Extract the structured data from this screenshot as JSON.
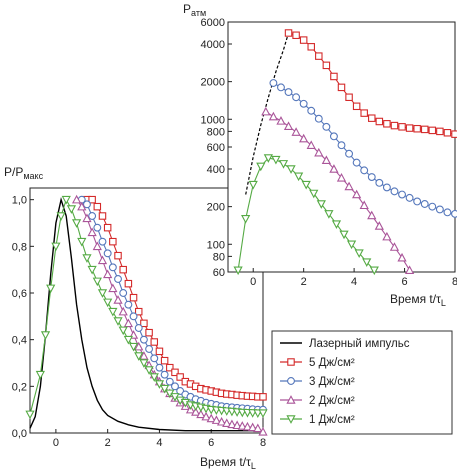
{
  "chart_data": [
    {
      "type": "line",
      "panel": "main",
      "ylabel": "P/P",
      "ylabel_sub": "макс",
      "xlabel": "Время t/τ",
      "xlabel_sub": "L",
      "xlim": [
        -1,
        8
      ],
      "ylim": [
        0,
        1.05
      ],
      "xticks": [
        0,
        2,
        4,
        6,
        8
      ],
      "yticks": [
        0,
        0.2,
        0.4,
        0.6,
        0.8,
        1.0
      ],
      "ytick_labels": [
        "0,0",
        "0,2",
        "0,4",
        "0,6",
        "0,8",
        "1,0"
      ],
      "grid": false,
      "legend": {
        "position": "lower-right",
        "entries": [
          "Лазерный импульс",
          "5 Дж/см²",
          "3 Дж/см²",
          "2 Дж/см²",
          "1 Дж/см²"
        ]
      },
      "series": [
        {
          "name": "Лазерный импульс",
          "color": "#000000",
          "marker": "none",
          "x": [
            -1,
            -0.8,
            -0.6,
            -0.4,
            -0.2,
            0,
            0.2,
            0.4,
            0.6,
            0.8,
            1.0,
            1.2,
            1.4,
            1.6,
            1.8,
            2.0,
            2.4,
            2.8,
            3.2,
            4,
            5,
            6,
            7,
            8
          ],
          "y": [
            0.02,
            0.07,
            0.2,
            0.42,
            0.68,
            0.9,
            1.0,
            0.93,
            0.75,
            0.55,
            0.4,
            0.28,
            0.2,
            0.14,
            0.1,
            0.075,
            0.05,
            0.035,
            0.025,
            0.015,
            0.01,
            0.01,
            0.01,
            0.01
          ]
        },
        {
          "name": "5 Дж/см²",
          "color": "#d42a2a",
          "marker": "square",
          "x": [
            1.2,
            1.4,
            1.6,
            1.8,
            2.0,
            2.2,
            2.4,
            2.6,
            2.8,
            3.0,
            3.2,
            3.4,
            3.6,
            3.8,
            4.0,
            4.2,
            4.4,
            4.6,
            4.8,
            5.0,
            5.2,
            5.4,
            5.6,
            5.8,
            6.0,
            6.2,
            6.4,
            6.6,
            6.8,
            7.0,
            7.2,
            7.4,
            7.6,
            7.8,
            8.0
          ],
          "y": [
            1.0,
            1.0,
            0.97,
            0.93,
            0.88,
            0.82,
            0.76,
            0.7,
            0.64,
            0.58,
            0.52,
            0.47,
            0.43,
            0.39,
            0.35,
            0.31,
            0.28,
            0.26,
            0.24,
            0.22,
            0.21,
            0.2,
            0.19,
            0.185,
            0.18,
            0.175,
            0.17,
            0.167,
            0.165,
            0.162,
            0.16,
            0.158,
            0.157,
            0.155,
            0.155
          ]
        },
        {
          "name": "3 Дж/см²",
          "color": "#5577bb",
          "marker": "circle",
          "x": [
            1.0,
            1.2,
            1.4,
            1.6,
            1.8,
            2.0,
            2.2,
            2.4,
            2.6,
            2.8,
            3.0,
            3.2,
            3.4,
            3.6,
            3.8,
            4.0,
            4.2,
            4.4,
            4.6,
            4.8,
            5.0,
            5.2,
            5.4,
            5.6,
            5.8,
            6.0,
            6.2,
            6.4,
            6.6,
            6.8,
            7.0,
            7.2,
            7.4,
            7.6,
            7.8,
            8.0
          ],
          "y": [
            1.0,
            0.98,
            0.93,
            0.88,
            0.82,
            0.77,
            0.71,
            0.66,
            0.6,
            0.55,
            0.5,
            0.45,
            0.4,
            0.36,
            0.32,
            0.28,
            0.25,
            0.22,
            0.2,
            0.18,
            0.165,
            0.155,
            0.145,
            0.138,
            0.13,
            0.125,
            0.12,
            0.115,
            0.112,
            0.11,
            0.108,
            0.106,
            0.104,
            0.102,
            0.1,
            0.1
          ]
        },
        {
          "name": "2 Дж/см²",
          "color": "#aa5599",
          "marker": "triangle-up",
          "x": [
            0.8,
            1.0,
            1.2,
            1.4,
            1.6,
            1.8,
            2.0,
            2.2,
            2.4,
            2.6,
            2.8,
            3.0,
            3.2,
            3.4,
            3.6,
            3.8,
            4.0,
            4.2,
            4.4,
            4.6,
            4.8,
            5.0,
            5.2,
            5.4,
            5.6,
            5.8,
            6.0,
            6.2,
            6.4,
            6.6,
            6.8,
            7.0,
            7.2,
            7.4,
            7.6,
            7.8,
            8.0
          ],
          "y": [
            1.0,
            0.97,
            0.92,
            0.86,
            0.8,
            0.74,
            0.68,
            0.62,
            0.57,
            0.52,
            0.47,
            0.42,
            0.37,
            0.33,
            0.29,
            0.25,
            0.22,
            0.19,
            0.17,
            0.15,
            0.13,
            0.115,
            0.1,
            0.09,
            0.08,
            0.07,
            0.062,
            0.055,
            0.048,
            0.042,
            0.037,
            0.033,
            0.03,
            0.027,
            0.024,
            0.02,
            0.005
          ]
        },
        {
          "name": "1 Дж/см²",
          "color": "#55aa44",
          "marker": "triangle-down",
          "x": [
            -1.0,
            -0.6,
            -0.4,
            -0.2,
            0.0,
            0.2,
            0.4,
            0.6,
            0.8,
            1.0,
            1.2,
            1.4,
            1.6,
            1.8,
            2.0,
            2.2,
            2.4,
            2.6,
            2.8,
            3.0,
            3.2,
            3.4,
            3.6,
            3.8,
            4.0,
            4.2,
            4.4,
            4.6,
            4.8,
            5.0,
            5.2,
            5.4,
            5.6,
            5.8,
            6.0,
            6.2,
            6.4,
            6.6,
            6.8,
            7.0,
            7.2,
            7.4,
            7.6,
            7.8,
            8.0
          ],
          "y": [
            0.08,
            0.25,
            0.42,
            0.62,
            0.8,
            0.93,
            1.0,
            0.96,
            0.9,
            0.82,
            0.75,
            0.7,
            0.65,
            0.6,
            0.56,
            0.52,
            0.48,
            0.44,
            0.4,
            0.37,
            0.33,
            0.3,
            0.27,
            0.24,
            0.21,
            0.19,
            0.17,
            0.155,
            0.14,
            0.13,
            0.12,
            0.115,
            0.11,
            0.105,
            0.1,
            0.098,
            0.096,
            0.094,
            0.092,
            0.09,
            0.088,
            0.087,
            0.086,
            0.085,
            0.085
          ]
        }
      ]
    },
    {
      "type": "line",
      "panel": "inset",
      "scale_y": "log",
      "ylabel": "P",
      "ylabel_sub": "атм",
      "xlabel": "Время t/τ",
      "xlabel_sub": "L",
      "xlim": [
        -1,
        8
      ],
      "ylim": [
        60,
        6000
      ],
      "xticks": [
        0,
        2,
        4,
        6,
        8
      ],
      "yticks": [
        60,
        80,
        100,
        200,
        400,
        600,
        800,
        1000,
        2000,
        4000,
        6000
      ],
      "ytick_labels": [
        "60",
        "80",
        "100",
        "200",
        "400",
        "600",
        "800",
        "1000",
        "2000",
        "4000",
        "6000"
      ],
      "grid": false,
      "dashed_rise": {
        "color": "#000000",
        "x": [
          -0.3,
          0.0,
          0.3,
          0.6,
          0.9,
          1.2,
          1.4
        ],
        "y": [
          250,
          500,
          900,
          1500,
          2400,
          3600,
          4900
        ]
      },
      "series": [
        {
          "name": "5 Дж/см²",
          "color": "#d42a2a",
          "marker": "square",
          "x": [
            1.4,
            1.7,
            2.0,
            2.3,
            2.6,
            2.9,
            3.2,
            3.5,
            3.8,
            4.1,
            4.4,
            4.7,
            5.0,
            5.3,
            5.6,
            5.9,
            6.2,
            6.5,
            6.8,
            7.1,
            7.4,
            7.7,
            8.0
          ],
          "y": [
            4900,
            4700,
            4300,
            3800,
            3200,
            2700,
            2200,
            1800,
            1500,
            1270,
            1120,
            1020,
            960,
            920,
            890,
            870,
            850,
            840,
            830,
            815,
            800,
            780,
            760
          ]
        },
        {
          "name": "3 Дж/см²",
          "color": "#5577bb",
          "marker": "circle",
          "x": [
            0.8,
            1.1,
            1.4,
            1.7,
            2.0,
            2.3,
            2.6,
            2.9,
            3.2,
            3.5,
            3.8,
            4.1,
            4.4,
            4.7,
            5.0,
            5.3,
            5.6,
            5.9,
            6.2,
            6.5,
            6.8,
            7.1,
            7.4,
            7.7,
            8.0
          ],
          "y": [
            1950,
            1800,
            1650,
            1500,
            1330,
            1170,
            1010,
            870,
            730,
            620,
            530,
            450,
            390,
            345,
            310,
            285,
            265,
            250,
            235,
            220,
            210,
            200,
            190,
            180,
            175
          ]
        },
        {
          "name": "2 Дж/см²",
          "color": "#aa5599",
          "marker": "triangle-up",
          "x": [
            0.5,
            0.8,
            1.1,
            1.4,
            1.7,
            2.0,
            2.3,
            2.6,
            2.9,
            3.2,
            3.5,
            3.8,
            4.1,
            4.4,
            4.7,
            5.0,
            5.3,
            5.6,
            5.9,
            6.2
          ],
          "y": [
            1150,
            1050,
            970,
            880,
            790,
            700,
            620,
            540,
            470,
            400,
            340,
            290,
            250,
            205,
            170,
            140,
            115,
            95,
            78,
            62
          ]
        },
        {
          "name": "1 Дж/см²",
          "color": "#55aa44",
          "marker": "triangle-down",
          "x": [
            -0.6,
            -0.3,
            0.0,
            0.3,
            0.6,
            0.9,
            1.2,
            1.5,
            1.8,
            2.1,
            2.4,
            2.7,
            3.0,
            3.3,
            3.6,
            3.9,
            4.2,
            4.5,
            4.8
          ],
          "y": [
            62,
            160,
            300,
            420,
            490,
            475,
            440,
            400,
            350,
            300,
            255,
            210,
            175,
            145,
            120,
            100,
            85,
            72,
            62
          ]
        }
      ]
    }
  ]
}
